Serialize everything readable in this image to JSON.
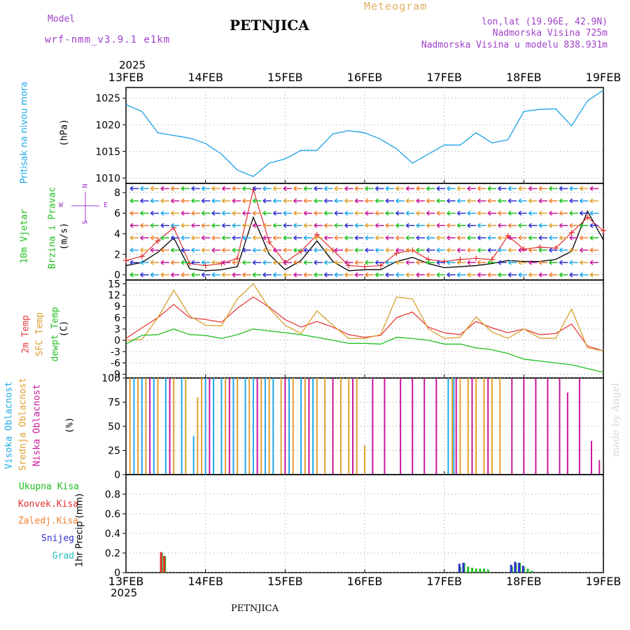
{
  "header": {
    "model_label": "Model",
    "model_name": "wrf-nmm_v3.9.1 e1km",
    "title": "PETNJICA",
    "meteogram_label": "Meteogram",
    "lonlat": "lon,lat (19.96E, 42.9N)",
    "altitude": "Nadmorska Visina 725m",
    "model_altitude": "Nadmorska Visina u modelu 838.931m",
    "year_top": "2025",
    "year_bottom": "2025",
    "footer_title": "PETNJICA",
    "watermark": "made by Angel"
  },
  "colors": {
    "pressure": "#1ea0e6",
    "wind_speed": "#000000",
    "gust": "#e03030",
    "temp2m": "#e83c3c",
    "sfc_temp": "#d8a030",
    "dewpt": "#20c020",
    "cloud_high": "#20a8e8",
    "cloud_mid": "#e0a030",
    "cloud_low": "#c8189a",
    "precip_total": "#20c020",
    "precip_conv": "#e03030",
    "precip_strat": "#f08030",
    "snow": "#3030d0",
    "hail": "#20c0c0"
  },
  "chart_data": [
    {
      "panel": "pressure",
      "type": "line",
      "ylabel_side": "Pritisak na nivou mora",
      "ylabel": "(hPa)",
      "x_ticks": [
        "13FEB",
        "14FEB",
        "15FEB",
        "16FEB",
        "17FEB",
        "18FEB",
        "19FEB"
      ],
      "ylim": [
        1009,
        1027
      ],
      "y_ticks": [
        1010,
        1015,
        1020,
        1025
      ],
      "grid": true,
      "x": [
        0,
        0.2,
        0.4,
        0.6,
        0.8,
        1.0,
        1.2,
        1.4,
        1.6,
        1.8,
        2.0,
        2.2,
        2.4,
        2.6,
        2.8,
        3.0,
        3.2,
        3.4,
        3.6,
        3.8,
        4.0,
        4.2,
        4.4,
        4.6,
        4.8,
        5.0,
        5.2,
        5.4,
        5.6,
        5.8,
        6.0
      ],
      "series": [
        {
          "key": "pressure",
          "values": [
            1023.8,
            1022.5,
            1018.5,
            1018,
            1017.5,
            1016.5,
            1014.5,
            1011.5,
            1010.3,
            1012.8,
            1013.6,
            1015.2,
            1015.2,
            1018.3,
            1018.9,
            1018.5,
            1017.3,
            1015.5,
            1012.8,
            1014.5,
            1016.2,
            1016.2,
            1018.5,
            1016.6,
            1017.2,
            1022.5,
            1022.9,
            1023.0,
            1019.8,
            1024.5,
            1026.5
          ]
        }
      ]
    },
    {
      "panel": "wind",
      "type": "line",
      "ylabel_side": [
        "10m Vjetar",
        "Brzina i Pravac"
      ],
      "ylabel": "(m/s)",
      "compass": [
        "N",
        "S",
        "W",
        "E"
      ],
      "ylim": [
        -0.5,
        8.9
      ],
      "y_ticks": [
        0,
        2,
        4,
        6,
        8
      ],
      "grid": true,
      "x": [
        0,
        0.2,
        0.4,
        0.6,
        0.8,
        1.0,
        1.2,
        1.4,
        1.6,
        1.8,
        2.0,
        2.2,
        2.4,
        2.6,
        2.8,
        3.0,
        3.2,
        3.4,
        3.6,
        3.8,
        4.0,
        4.2,
        4.4,
        4.6,
        4.8,
        5.0,
        5.2,
        5.4,
        5.6,
        5.8,
        6.0
      ],
      "series": [
        {
          "key": "wind_speed",
          "values": [
            0.9,
            1.2,
            2.2,
            3.6,
            0.6,
            0.4,
            0.5,
            0.8,
            5.6,
            2.0,
            0.5,
            1.4,
            3.3,
            1.3,
            0.4,
            0.5,
            0.5,
            1.3,
            1.7,
            1.1,
            0.7,
            0.8,
            0.9,
            1.1,
            1.4,
            1.3,
            1.3,
            1.5,
            2.3,
            6.2,
            3.4
          ]
        },
        {
          "key": "gust",
          "values": [
            1.4,
            1.8,
            3.3,
            4.6,
            1.1,
            0.9,
            1.1,
            1.6,
            8.3,
            3.2,
            1.2,
            2.3,
            3.9,
            2.4,
            0.9,
            0.8,
            0.9,
            2.1,
            2.4,
            1.5,
            1.3,
            1.5,
            1.6,
            1.5,
            3.8,
            2.5,
            2.7,
            2.6,
            4.1,
            5.6,
            4.3
          ]
        }
      ],
      "arrow_rows": [
        0,
        1.2,
        2.4,
        3.6,
        4.8,
        6,
        7.2,
        8.4
      ]
    },
    {
      "panel": "temperature",
      "type": "line",
      "ylabel_side": [
        "2m Temp",
        "SFC Temp",
        "dewpt Temp"
      ],
      "ylabel": "(C)",
      "ylim": [
        -10,
        16
      ],
      "y_ticks": [
        -9,
        -6,
        -3,
        0,
        3,
        6,
        9,
        12,
        15
      ],
      "grid": true,
      "x": [
        0,
        0.2,
        0.4,
        0.6,
        0.8,
        1.0,
        1.2,
        1.4,
        1.6,
        1.8,
        2.0,
        2.2,
        2.4,
        2.6,
        2.8,
        3.0,
        3.2,
        3.4,
        3.6,
        3.8,
        4.0,
        4.2,
        4.4,
        4.6,
        4.8,
        5.0,
        5.2,
        5.4,
        5.6,
        5.8,
        6.0
      ],
      "series": [
        {
          "key": "temp2m",
          "values": [
            0.5,
            3.3,
            6.0,
            9.5,
            6.0,
            5.5,
            4.8,
            8.5,
            11.5,
            8.8,
            5.5,
            3.5,
            5.0,
            3.5,
            1.5,
            0.8,
            1.3,
            6.0,
            7.5,
            3.5,
            2.0,
            1.5,
            5.0,
            3.3,
            2.0,
            3.0,
            1.5,
            1.8,
            4.3,
            -1.5,
            -2.8
          ]
        },
        {
          "key": "sfc_temp",
          "values": [
            0,
            0.2,
            6.0,
            13.3,
            6.5,
            4.0,
            3.8,
            11.0,
            15.0,
            8.5,
            4.0,
            1.8,
            7.8,
            4.0,
            0.5,
            0.5,
            1.5,
            11.5,
            11.0,
            3.0,
            0.5,
            0.8,
            6.2,
            2.2,
            0.5,
            3.0,
            0.6,
            0.5,
            8.3,
            -2.0,
            -2.8
          ]
        },
        {
          "key": "dewpt",
          "values": [
            -1.0,
            1.3,
            1.5,
            3.0,
            1.5,
            1.3,
            0.5,
            1.5,
            3.0,
            2.5,
            2.0,
            1.5,
            0.8,
            0.0,
            -0.8,
            -0.8,
            -1.0,
            0.8,
            0.5,
            0.0,
            -1.0,
            -1.0,
            -2.0,
            -2.5,
            -3.5,
            -5.0,
            -5.5,
            -6.0,
            -6.5,
            -7.5,
            -8.5
          ]
        }
      ]
    },
    {
      "panel": "clouds",
      "type": "bar",
      "ylabel_side": [
        "Visoka Oblacnost",
        "Srednja Oblacnost",
        "Niska Oblacnost"
      ],
      "ylabel": "(%)",
      "ylim": [
        0,
        100
      ],
      "y_ticks": [
        0,
        25,
        50,
        75,
        100
      ],
      "grid": true,
      "series": [
        {
          "key": "cloud_high",
          "x": [
            0.1,
            0.2,
            0.35,
            0.5,
            0.7,
            0.85,
            1.0,
            1.1,
            1.2,
            1.35,
            1.5,
            1.6,
            1.75,
            1.85,
            2.05,
            2.2,
            2.35,
            4.05,
            4.12
          ],
          "values": [
            100,
            100,
            100,
            100,
            100,
            40,
            100,
            100,
            100,
            100,
            100,
            100,
            100,
            100,
            100,
            100,
            100,
            100,
            100
          ]
        },
        {
          "key": "cloud_mid",
          "x": [
            0.05,
            0.15,
            0.25,
            0.4,
            0.6,
            0.75,
            0.9,
            0.95,
            1.25,
            1.4,
            1.55,
            1.7,
            1.8,
            1.95,
            2.1,
            2.25,
            2.4,
            2.5,
            2.6,
            2.7,
            2.8,
            2.9,
            3.0,
            4.1,
            4.2,
            4.3,
            4.4,
            4.5,
            4.6,
            4.7
          ],
          "values": [
            100,
            100,
            100,
            100,
            100,
            100,
            80,
            100,
            100,
            100,
            100,
            100,
            100,
            100,
            100,
            100,
            100,
            100,
            100,
            100,
            100,
            100,
            30,
            100,
            100,
            100,
            100,
            100,
            100,
            100
          ]
        },
        {
          "key": "cloud_low",
          "x": [
            0.3,
            0.55,
            1.05,
            1.3,
            1.65,
            2.0,
            2.3,
            2.6,
            2.85,
            3.1,
            3.25,
            3.45,
            3.6,
            3.75,
            3.9,
            4.15,
            4.35,
            4.55,
            4.85,
            5.0,
            5.15,
            5.3,
            5.45,
            5.55,
            5.7,
            5.85,
            5.95
          ],
          "values": [
            100,
            100,
            100,
            100,
            100,
            100,
            100,
            100,
            100,
            100,
            100,
            100,
            100,
            100,
            100,
            100,
            100,
            100,
            100,
            100,
            100,
            100,
            100,
            85,
            100,
            35,
            15
          ]
        }
      ]
    },
    {
      "panel": "precip",
      "type": "bar",
      "legend": [
        "Ukupna Kisa",
        "Konvek.Kisa",
        "Zaledj.Kisa",
        "Snijeg",
        "Grad"
      ],
      "ylabel": "1hr Precip (mm)",
      "ylim": [
        0,
        1
      ],
      "y_ticks": [
        0,
        0.2,
        0.4,
        0.6,
        0.8
      ],
      "grid": true,
      "series": [
        {
          "key": "precip_total",
          "x": [
            0.45,
            0.49,
            4.2,
            4.25,
            4.3,
            4.35,
            4.4,
            4.45,
            4.5,
            4.55,
            4.85,
            4.9,
            4.95,
            5.0,
            5.05,
            5.1
          ],
          "values": [
            0.2,
            0.17,
            0.06,
            0.1,
            0.06,
            0.05,
            0.04,
            0.04,
            0.04,
            0.03,
            0.06,
            0.1,
            0.1,
            0.06,
            0.04,
            0.02
          ]
        },
        {
          "key": "precip_conv",
          "x": [
            0.44,
            0.48
          ],
          "values": [
            0.21,
            0.17
          ]
        },
        {
          "key": "snow",
          "x": [
            4.19,
            4.24,
            4.84,
            4.89,
            4.94,
            4.99
          ],
          "values": [
            0.09,
            0.1,
            0.08,
            0.11,
            0.1,
            0.07
          ]
        }
      ]
    }
  ]
}
